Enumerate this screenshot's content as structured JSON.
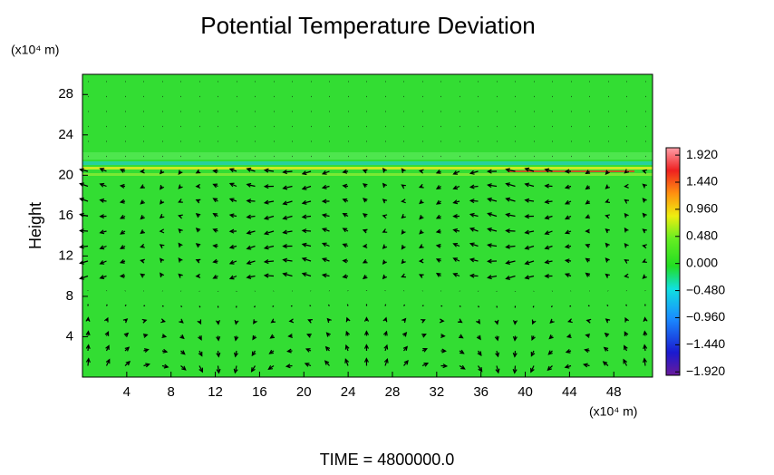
{
  "chart_data": {
    "type": "heatmap",
    "title": "Potential Temperature Deviation",
    "y_label": "Height",
    "y_unit_label": "(x10⁴ m)",
    "x_unit_label": "(x10⁴ m)",
    "footer": "TIME = 4800000.0",
    "xlim": [
      0,
      51.5
    ],
    "xticks": [
      4,
      8,
      12,
      16,
      20,
      24,
      28,
      32,
      36,
      40,
      44,
      48
    ],
    "ylim": [
      0,
      30
    ],
    "yticks": [
      4,
      8,
      12,
      16,
      20,
      24,
      28
    ],
    "clim": [
      -1.98,
      2.05
    ],
    "cticks": [
      {
        "value": 1.92,
        "label": "1.920"
      },
      {
        "value": 1.44,
        "label": "1.440"
      },
      {
        "value": 0.96,
        "label": "0.960"
      },
      {
        "value": 0.48,
        "label": "0.480"
      },
      {
        "value": 0,
        "label": "0.000"
      },
      {
        "value": -0.48,
        "label": "−0.480"
      },
      {
        "value": -0.96,
        "label": "−0.960"
      },
      {
        "value": -1.44,
        "label": "−1.440"
      },
      {
        "value": -1.92,
        "label": "−1.920"
      }
    ]
  }
}
